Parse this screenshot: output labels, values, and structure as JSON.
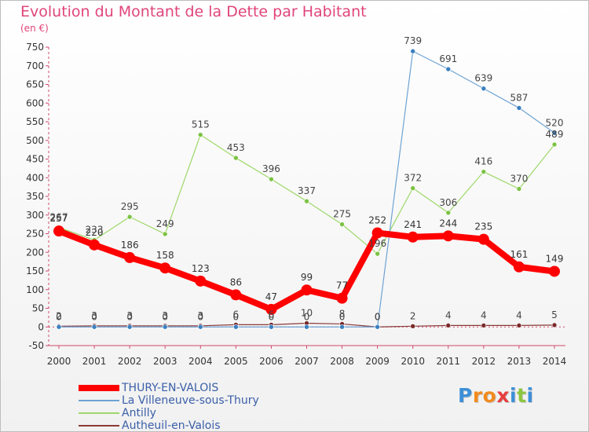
{
  "title": "Evolution du Montant de la Dette par Habitant",
  "unit": "(en €)",
  "logo": {
    "letters": [
      "P",
      "r",
      "o",
      "x",
      "i",
      "t",
      "i"
    ],
    "colors": [
      "#3c8fd8",
      "#f28a1e",
      "#f28a1e",
      "#e83e3e",
      "#3c8fd8",
      "#8cc63f",
      "#3c8fd8"
    ]
  },
  "chart_data": {
    "type": "line",
    "x": [
      2000,
      2001,
      2002,
      2003,
      2004,
      2005,
      2006,
      2007,
      2008,
      2009,
      2010,
      2011,
      2012,
      2013,
      2014
    ],
    "ylim": [
      -50,
      750
    ],
    "yticks": [
      -50,
      0,
      50,
      100,
      150,
      200,
      250,
      300,
      350,
      400,
      450,
      500,
      550,
      600,
      650,
      700,
      750
    ],
    "grid": false,
    "legend_position": "bottom-left",
    "series": [
      {
        "name": "THURY-EN-VALOIS",
        "color": "#ff0000",
        "width": 8,
        "marker": 7,
        "label_color": "#333333",
        "values": [
          257,
          220,
          186,
          158,
          123,
          86,
          47,
          99,
          77,
          252,
          241,
          244,
          235,
          161,
          149
        ]
      },
      {
        "name": "La Villeneuve-sous-Thury",
        "color": "#6da3d3",
        "width": 1.2,
        "marker": 3,
        "marker_color": "#3a7fc0",
        "label_color": "#444444",
        "values": [
          0,
          0,
          0,
          0,
          0,
          0,
          0,
          0,
          0,
          0,
          739,
          691,
          639,
          587,
          520
        ]
      },
      {
        "name": "Antilly",
        "color": "#9ed86a",
        "width": 1.2,
        "marker": 3,
        "marker_color": "#7cc242",
        "label_color": "#444444",
        "values": [
          267,
          233,
          295,
          249,
          515,
          453,
          396,
          337,
          275,
          196,
          372,
          306,
          416,
          370,
          489
        ]
      },
      {
        "name": "Autheuil-en-Valois",
        "color": "#8b3a3a",
        "width": 1.2,
        "marker": 3,
        "marker_color": "#7a2a2a",
        "label_color": "#444444",
        "values": [
          2,
          3,
          3,
          3,
          3,
          6,
          6,
          10,
          8,
          0,
          2,
          4,
          4,
          4,
          5
        ]
      }
    ]
  }
}
